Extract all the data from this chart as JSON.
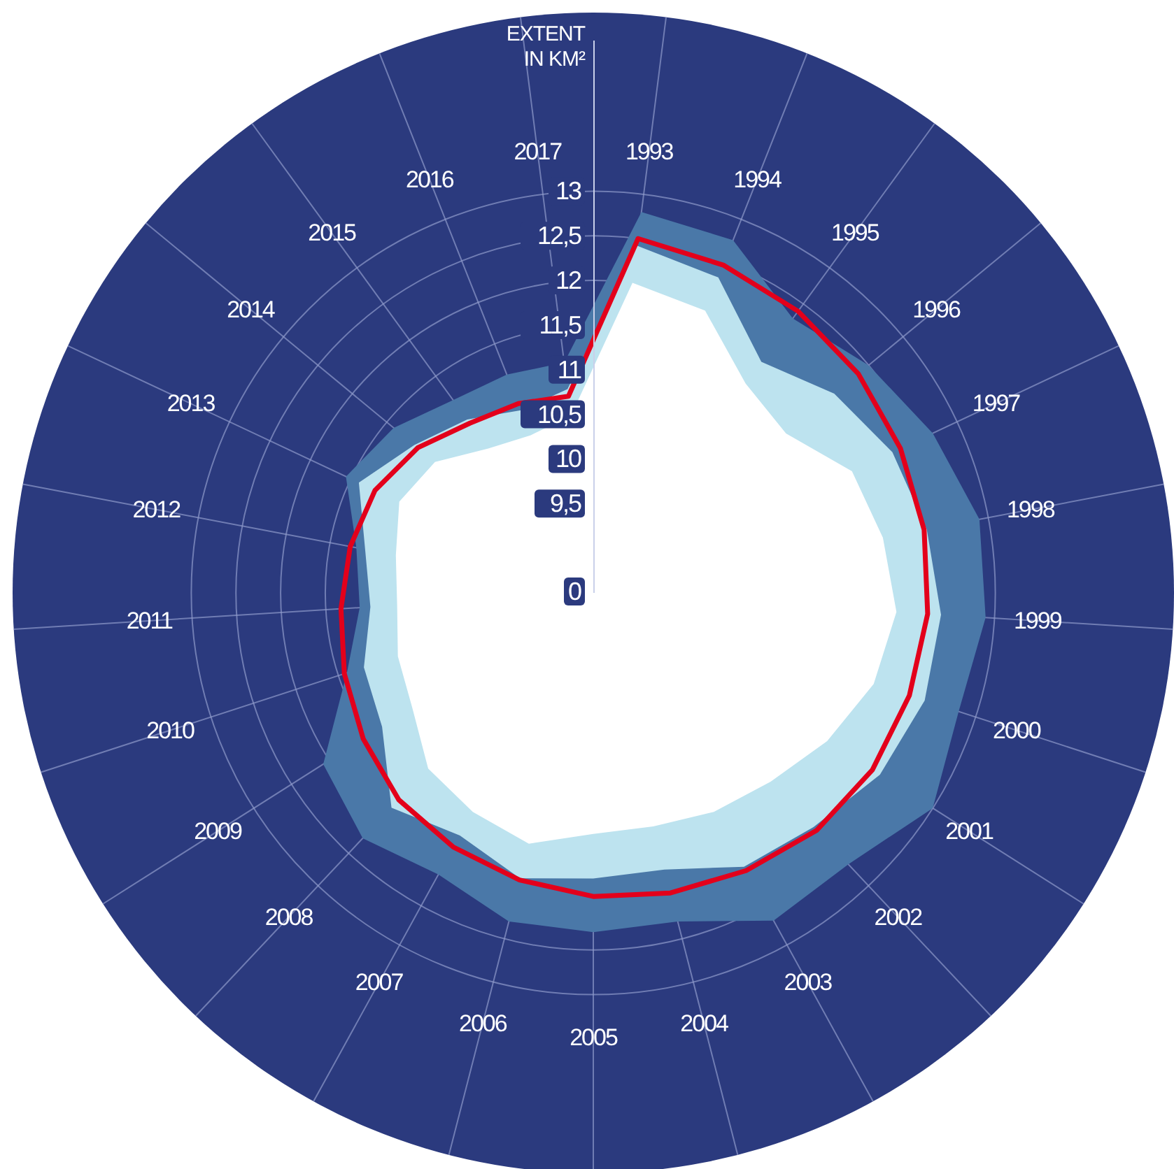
{
  "chart_data": {
    "type": "radar",
    "ylabel": "EXTENT IN KM²",
    "categories": [
      "1993",
      "1994",
      "1995",
      "1996",
      "1997",
      "1998",
      "1999",
      "2000",
      "2001",
      "2002",
      "2003",
      "2004",
      "2005",
      "2006",
      "2007",
      "2008",
      "2009",
      "2010",
      "2011",
      "2012",
      "2013",
      "2014",
      "2015",
      "2016",
      "2017"
    ],
    "series": [
      {
        "color": "#4a78a8",
        "values": [
          12.8,
          12.75,
          12.3,
          12.5,
          12.7,
          12.9,
          12.9,
          12.8,
          13.0,
          12.67,
          12.69,
          12.3,
          12.3,
          12.3,
          12.1,
          12.27,
          12.08,
          11.4,
          11.12,
          11.2,
          11.56,
          11.4,
          11.17,
          11.13,
          11.1
        ]
      },
      {
        "color": "#bde3ef",
        "values": [
          12.42,
          12.3,
          11.7,
          12.0,
          12.2,
          12.3,
          12.4,
          12.4,
          12.3,
          12.1,
          12.0,
          11.7,
          11.7,
          11.8,
          11.6,
          11.8,
          11.3,
          11.2,
          11.0,
          11.1,
          11.4,
          11.1,
          10.9,
          10.7,
          10.8
        ]
      },
      {
        "color": "#ffffff",
        "values": [
          12.0,
          11.9,
          11.4,
          11.3,
          11.7,
          11.8,
          11.9,
          11.8,
          11.6,
          11.4,
          11.3,
          11.2,
          11.2,
          11.4,
          11.3,
          11.2,
          10.9,
          10.8,
          10.7,
          10.75,
          10.9,
          10.8,
          10.5,
          10.4,
          10.5
        ]
      },
      {
        "color": "#e3001b",
        "values": [
          12.5,
          12.45,
          12.4,
          12.35,
          12.3,
          12.27,
          12.25,
          12.22,
          12.2,
          12.15,
          12.05,
          11.97,
          11.9,
          11.82,
          11.75,
          11.68,
          11.55,
          11.43,
          11.33,
          11.27,
          11.2,
          11.05,
          10.85,
          10.78,
          10.72
        ]
      }
    ],
    "ylim": [
      8.5,
      15
    ],
    "yticks": [
      {
        "value": 9.5,
        "label": "9,5"
      },
      {
        "value": 10,
        "label": "10"
      },
      {
        "value": 10.5,
        "label": "10,5"
      },
      {
        "value": 11,
        "label": "11"
      },
      {
        "value": 11.5,
        "label": "11,5"
      },
      {
        "value": 12,
        "label": "12"
      },
      {
        "value": 12.5,
        "label": "12,5"
      },
      {
        "value": 13,
        "label": "13"
      }
    ],
    "annotations": [
      "0"
    ],
    "grid": true
  }
}
